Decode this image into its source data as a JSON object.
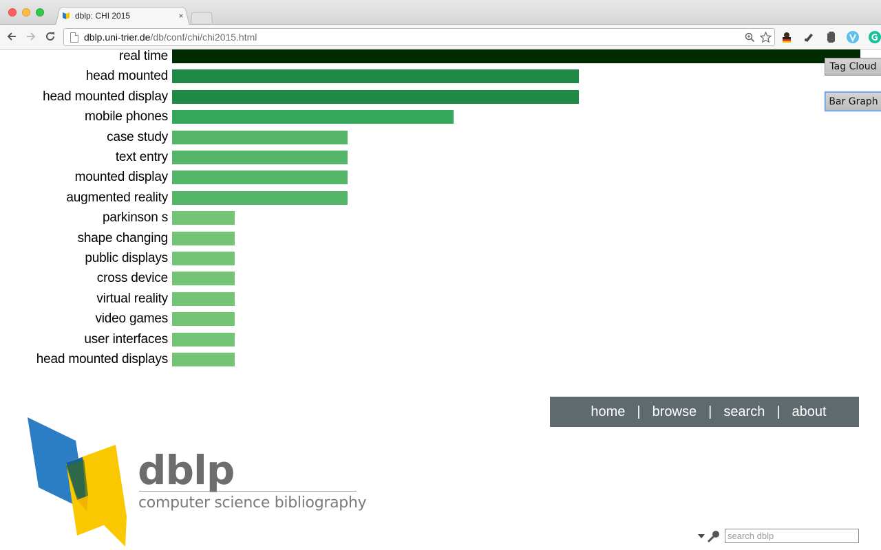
{
  "browser": {
    "tab_title": "dblp: CHI 2015",
    "tab_close": "×",
    "url_host": "dblp.uni-trier.de",
    "url_path": "/db/conf/chi/chi2015.html"
  },
  "view_buttons": {
    "tag_cloud": "Tag Cloud",
    "bar_graph": "Bar Graph"
  },
  "chart_data": {
    "type": "bar",
    "orientation": "horizontal",
    "categories": [
      "real time",
      "head mounted",
      "head mounted display",
      "mobile phones",
      "case study",
      "text entry",
      "mounted display",
      "augmented reality",
      "parkinson s",
      "shape changing",
      "public displays",
      "cross device",
      "virtual reality",
      "video games",
      "user interfaces",
      "head mounted displays"
    ],
    "values": [
      11,
      6.5,
      6.5,
      4.5,
      2.8,
      2.8,
      2.8,
      2.8,
      1,
      1,
      1,
      1,
      1,
      1,
      1,
      1
    ],
    "colors": [
      "#002a00",
      "#1e8a45",
      "#1e8a45",
      "#35a65a",
      "#54b467",
      "#54b467",
      "#54b467",
      "#54b467",
      "#74c476",
      "#74c476",
      "#74c476",
      "#74c476",
      "#74c476",
      "#74c476",
      "#74c476",
      "#74c476"
    ],
    "grid": false,
    "legend": "none"
  },
  "footer_nav": {
    "items": [
      "home",
      "browse",
      "search",
      "about"
    ],
    "separator": "|"
  },
  "logo": {
    "word": "dblp",
    "tagline": "computer science bibliography"
  },
  "search": {
    "placeholder": "search dblp",
    "value": ""
  }
}
